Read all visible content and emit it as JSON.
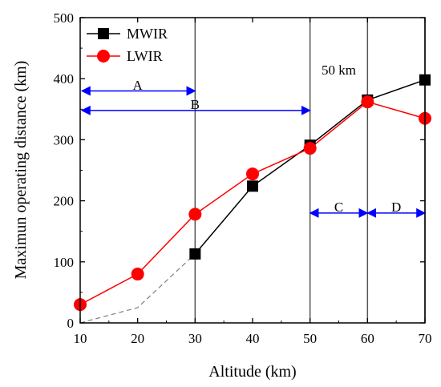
{
  "chart_data": {
    "type": "line",
    "xlabel": "Altitude (km)",
    "ylabel": "Maximun operating distance (km)",
    "xlim": [
      10,
      70
    ],
    "ylim": [
      0,
      500
    ],
    "xticks": [
      10,
      20,
      30,
      40,
      50,
      60,
      70
    ],
    "yticks": [
      0,
      100,
      200,
      300,
      400,
      500
    ],
    "grid": false,
    "legend_position": "top-left",
    "series": [
      {
        "name": "MWIR",
        "color": "#000000",
        "marker": "square",
        "x": [
          30,
          40,
          50,
          60,
          70
        ],
        "y": [
          113,
          224,
          291,
          365,
          398
        ],
        "dashed_extension": {
          "color": "#808080",
          "x": [
            10,
            20,
            30
          ],
          "y": [
            0,
            25,
            113
          ]
        }
      },
      {
        "name": "LWIR",
        "color": "#ff0000",
        "marker": "circle",
        "x": [
          10,
          20,
          30,
          40,
          50,
          60,
          70
        ],
        "y": [
          30,
          80,
          178,
          244,
          286,
          362,
          335
        ]
      }
    ],
    "vertical_lines": [
      30,
      50,
      60,
      70
    ],
    "annotations": [
      {
        "text": "50 km",
        "x": 55,
        "y": 415
      },
      {
        "text": "A",
        "x_range": [
          10,
          30
        ],
        "y": 380,
        "label_y": 390
      },
      {
        "text": "B",
        "x_range": [
          10,
          50
        ],
        "y": 348,
        "label_y": 358
      },
      {
        "text": "C",
        "x_range": [
          50,
          60
        ],
        "y": 180,
        "label_y": 190
      },
      {
        "text": "D",
        "x_range": [
          60,
          70
        ],
        "y": 180,
        "label_y": 190
      }
    ]
  }
}
